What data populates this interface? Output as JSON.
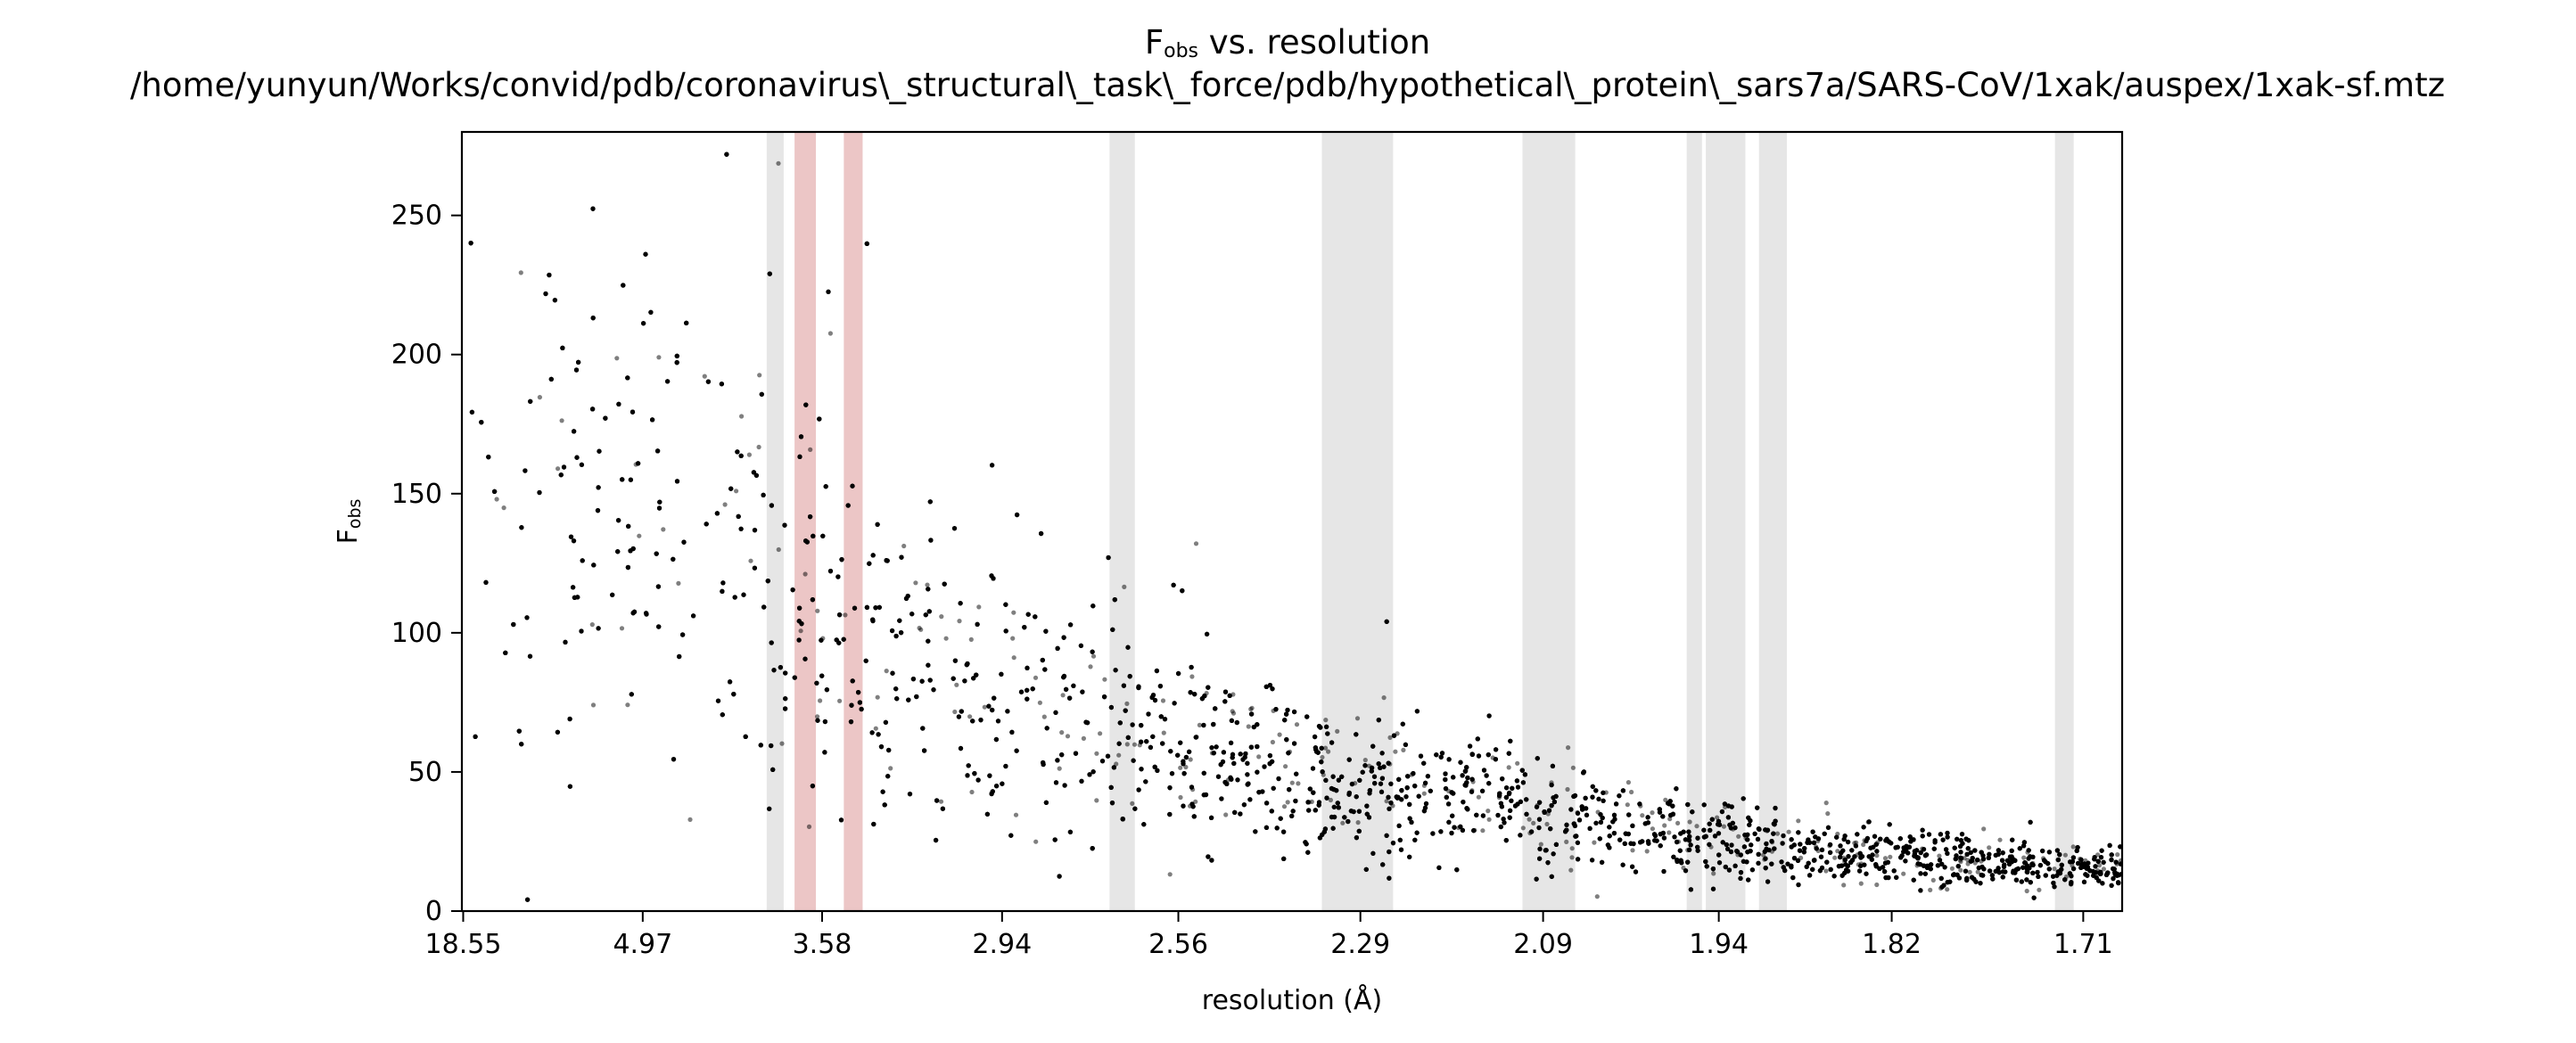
{
  "chart_data": {
    "type": "scatter",
    "title": "Fobs vs. resolution",
    "title_main": "F",
    "title_sub": "obs",
    "title_rest": " vs. resolution",
    "subtitle": "/home/yunyun/Works/convid/pdb/coronavirus\\_structural\\_task\\_force/pdb/hypothetical\\_protein\\_sars7a/SARS-CoV/1xak/auspex/1xak-sf.mtz",
    "xlabel": "resolution (Å)",
    "ylabel": "Fobs",
    "ylabel_main": "F",
    "ylabel_sub": "obs",
    "x_scale": "inverse-square (1/d²)",
    "xlim": [
      19.5,
      1.69
    ],
    "ylim": [
      0,
      280
    ],
    "x_ticks": [
      18.55,
      4.97,
      3.58,
      2.94,
      2.56,
      2.29,
      2.09,
      1.94,
      1.82,
      1.71
    ],
    "x_tick_labels": [
      "18.55",
      "4.97",
      "3.58",
      "2.94",
      "2.56",
      "2.29",
      "2.09",
      "1.94",
      "1.82",
      "1.71"
    ],
    "y_ticks": [
      0,
      50,
      100,
      150,
      200,
      250
    ],
    "y_tick_labels": [
      "0",
      "50",
      "100",
      "150",
      "200",
      "250"
    ],
    "grid": false,
    "legend": "none",
    "series": [
      {
        "marker_color": "#000000",
        "marker_opacity": 0.5,
        "point_count_estimate": 9500,
        "envelope_resolution": [
          18.55,
          6.0,
          4.97,
          4.2,
          3.58,
          3.2,
          2.94,
          2.7,
          2.56,
          2.4,
          2.29,
          2.15,
          2.09,
          2.0,
          1.94,
          1.88,
          1.82,
          1.76,
          1.71
        ],
        "envelope_mean": [
          150,
          145,
          140,
          125,
          105,
          88,
          75,
          66,
          58,
          51,
          46,
          40,
          35,
          30,
          25,
          22,
          19,
          17,
          15
        ],
        "envelope_spread": [
          75,
          72,
          70,
          62,
          55,
          45,
          36,
          30,
          26,
          22,
          19,
          16,
          14,
          12,
          10,
          9,
          7,
          6,
          6
        ]
      }
    ],
    "shaded_bands": [
      {
        "from": 3.88,
        "to": 3.78,
        "kind": "ice-ring",
        "color": "#e6e6e6"
      },
      {
        "from": 3.72,
        "to": 3.61,
        "kind": "ice-ring-flagged",
        "color": "#ecc6c6"
      },
      {
        "from": 3.48,
        "to": 3.4,
        "kind": "ice-ring-flagged",
        "color": "#ecc6c6"
      },
      {
        "from": 2.69,
        "to": 2.64,
        "kind": "ice-ring",
        "color": "#e6e6e6"
      },
      {
        "from": 2.34,
        "to": 2.25,
        "kind": "ice-ring",
        "color": "#e6e6e6"
      },
      {
        "from": 2.11,
        "to": 2.06,
        "kind": "ice-ring",
        "color": "#e6e6e6"
      },
      {
        "from": 1.965,
        "to": 1.953,
        "kind": "ice-ring",
        "color": "#e6e6e6"
      },
      {
        "from": 1.95,
        "to": 1.92,
        "kind": "ice-ring",
        "color": "#e6e6e6"
      },
      {
        "from": 1.91,
        "to": 1.89,
        "kind": "ice-ring",
        "color": "#e6e6e6"
      },
      {
        "from": 1.725,
        "to": 1.715,
        "kind": "ice-ring",
        "color": "#e6e6e6"
      }
    ]
  }
}
